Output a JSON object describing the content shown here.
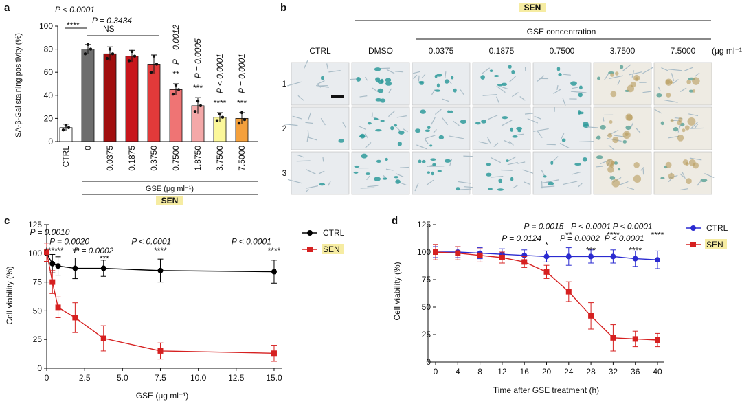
{
  "panels": {
    "a": "a",
    "b": "b",
    "c": "c",
    "d": "d"
  },
  "chart_data": [
    {
      "id": "a",
      "type": "bar",
      "ylabel": "SA-β-Gal staining positivity (%)",
      "xlabel": "GSE (μg ml⁻¹)",
      "group_label": "SEN",
      "ylim": [
        0,
        100
      ],
      "yticks": [
        "0",
        "20",
        "40",
        "60",
        "80",
        "100"
      ],
      "categories": [
        "CTRL",
        "0",
        "0.0375",
        "0.1875",
        "0.3750",
        "0.7500",
        "1.8750",
        "3.7500",
        "7.5000"
      ],
      "values": [
        12,
        80,
        76,
        74,
        67,
        45,
        31,
        21,
        20
      ],
      "errors": [
        3,
        4,
        6,
        5,
        8,
        5,
        7,
        4,
        5
      ],
      "points": [
        [
          10,
          14,
          12
        ],
        [
          76,
          84,
          80
        ],
        [
          72,
          80,
          76
        ],
        [
          70,
          78,
          74
        ],
        [
          60,
          74,
          67
        ],
        [
          41,
          49,
          45
        ],
        [
          26,
          35,
          31
        ],
        [
          18,
          24,
          21
        ],
        [
          16,
          25,
          19
        ]
      ],
      "colors": [
        "#ffffff",
        "#6e6e6e",
        "#a10f0f",
        "#c8161d",
        "#e23a3a",
        "#ef7474",
        "#f4a8a8",
        "#fbf79a",
        "#f4a03c"
      ],
      "annotations": {
        "p_ctrl": "P < 0.0001",
        "p_ns": "P = 0.3434",
        "stars_ctrl": "****",
        "ns": "NS",
        "p_values": [
          "",
          "",
          "",
          "",
          "P = 0.0012",
          "P = 0.0005",
          "P < 0.0001",
          "P = 0.0001"
        ],
        "stars": [
          "",
          "",
          "",
          "",
          "**",
          "***",
          "****",
          "***"
        ]
      }
    },
    {
      "id": "c",
      "type": "line",
      "ylabel": "Cell viability (%)",
      "xlabel": "GSE (μg ml⁻¹)",
      "xlim": [
        0,
        15.5
      ],
      "ylim": [
        0,
        125
      ],
      "xticks": [
        "0",
        "2.5",
        "5.0",
        "7.5",
        "10.0",
        "12.5",
        "15.0"
      ],
      "yticks": [
        "0",
        "25",
        "50",
        "75",
        "100",
        "125"
      ],
      "x": [
        0,
        0.375,
        0.75,
        1.875,
        3.75,
        7.5,
        15
      ],
      "series": [
        {
          "name": "CTRL",
          "color": "#000000",
          "values": [
            100,
            91,
            89,
            87,
            87,
            85,
            84
          ],
          "errors": [
            25,
            8,
            8,
            9,
            7,
            10,
            10
          ]
        },
        {
          "name": "SEN",
          "color": "#d62020",
          "values": [
            101,
            75,
            53,
            44,
            26,
            15,
            13
          ],
          "errors": [
            8,
            10,
            9,
            13,
            11,
            7,
            7
          ]
        }
      ],
      "annotations": [
        {
          "x": 0.2,
          "y": 116,
          "text": "P = 0.0010"
        },
        {
          "x": 0.3,
          "y": 100,
          "text": "****"
        },
        {
          "x": 0.9,
          "y": 100,
          "text": "**"
        },
        {
          "x": 1.9,
          "y": 100,
          "text": "**"
        },
        {
          "x": 1.5,
          "y": 108,
          "text": "P = 0.0020"
        },
        {
          "x": 3.1,
          "y": 100,
          "text": "P = 0.0002"
        },
        {
          "x": 3.8,
          "y": 93,
          "text": "***"
        },
        {
          "x": 6.9,
          "y": 108,
          "text": "P < 0.0001"
        },
        {
          "x": 7.5,
          "y": 100,
          "text": "****"
        },
        {
          "x": 13.5,
          "y": 108,
          "text": "P < 0.0001"
        },
        {
          "x": 15,
          "y": 100,
          "text": "****"
        }
      ]
    },
    {
      "id": "d",
      "type": "line",
      "ylabel": "Cell viability (%)",
      "xlabel": "Time after GSE treatment (h)",
      "xlim": [
        0,
        40
      ],
      "ylim": [
        0,
        125
      ],
      "xticks": [
        "0",
        "4",
        "8",
        "12",
        "16",
        "20",
        "24",
        "28",
        "32",
        "36",
        "40"
      ],
      "yticks": [
        "0",
        "25",
        "50",
        "75",
        "100",
        "125"
      ],
      "x": [
        0,
        4,
        8,
        12,
        16,
        20,
        24,
        28,
        32,
        36,
        40
      ],
      "series": [
        {
          "name": "CTRL",
          "color": "#2a2ad0",
          "values": [
            100,
            100,
            99,
            98,
            97,
            96,
            96,
            96,
            96,
            94,
            93
          ],
          "errors": [
            5,
            5,
            5,
            5,
            5,
            5,
            8,
            6,
            6,
            7,
            8
          ]
        },
        {
          "name": "SEN",
          "color": "#d62020",
          "values": [
            100,
            99,
            97,
            95,
            91,
            82,
            64,
            42,
            22,
            21,
            20
          ],
          "errors": [
            7,
            6,
            6,
            5,
            5,
            6,
            9,
            12,
            12,
            7,
            6
          ]
        }
      ],
      "annotations": [
        {
          "x": 20,
          "y": 104,
          "text": "*"
        },
        {
          "x": 15.5,
          "y": 110,
          "text": "P = 0.0124"
        },
        {
          "x": 24,
          "y": 113,
          "text": "**"
        },
        {
          "x": 19.5,
          "y": 121,
          "text": "P = 0.0015"
        },
        {
          "x": 26,
          "y": 110,
          "text": "P = 0.0002"
        },
        {
          "x": 28,
          "y": 99,
          "text": "***"
        },
        {
          "x": 28,
          "y": 121,
          "text": "P < 0.0001"
        },
        {
          "x": 32,
          "y": 113,
          "text": "****"
        },
        {
          "x": 34,
          "y": 110,
          "text": "P < 0.0001"
        },
        {
          "x": 36,
          "y": 99,
          "text": "****"
        },
        {
          "x": 35.5,
          "y": 121,
          "text": "P < 0.0001"
        },
        {
          "x": 40,
          "y": 113,
          "text": "****"
        }
      ]
    }
  ],
  "panel_b": {
    "group_label": "SEN",
    "concentration_label": "GSE concentration",
    "unit": "(μg ml⁻¹",
    "columns": [
      "CTRL",
      "DMSO",
      "0.0375",
      "0.1875",
      "0.7500",
      "3.7500",
      "7.5000"
    ],
    "rows": [
      "1",
      "2",
      "3"
    ],
    "stain_levels": [
      0.12,
      0.85,
      0.75,
      0.55,
      0.4,
      0.3,
      0.25
    ]
  }
}
